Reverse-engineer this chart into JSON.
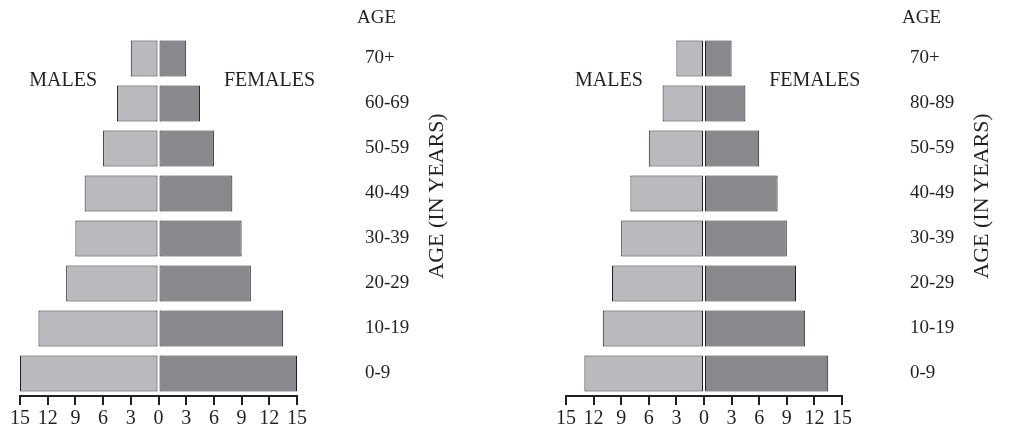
{
  "chart_data": [
    {
      "type": "bar",
      "orientation": "horizontal",
      "stacked": true,
      "ylabel": "AGE (IN YEARS)",
      "annotations": [
        "AGE"
      ],
      "categories": [
        "70+",
        "60-69",
        "50-59",
        "40-49",
        "30-39",
        "20-29",
        "10-19",
        "0-9"
      ],
      "series": [
        {
          "name": "MALES",
          "color": "#b9babd",
          "values": [
            -3,
            -4.5,
            -6,
            -8,
            -9,
            -10,
            -13,
            -15
          ]
        },
        {
          "name": "FEMALES",
          "color": "#88898d",
          "values": [
            3,
            4.5,
            6,
            8,
            9,
            10,
            13.5,
            15
          ]
        }
      ],
      "xlim": [
        -15,
        15
      ],
      "xticks": [
        {
          "value": -15,
          "label": "15"
        },
        {
          "value": -12,
          "label": "12"
        },
        {
          "value": -9,
          "label": "9"
        },
        {
          "value": -6,
          "label": "6"
        },
        {
          "value": -3,
          "label": "3"
        },
        0,
        3,
        6,
        9,
        12,
        15
      ],
      "grid": false,
      "legend": false
    },
    {
      "type": "bar",
      "orientation": "horizontal",
      "stacked": true,
      "ylabel": "AGE (IN YEARS)",
      "annotations": [
        "AGE"
      ],
      "categories": [
        "70+",
        "80-89",
        "50-59",
        "40-49",
        "30-39",
        "20-29",
        "10-19",
        "0-9"
      ],
      "series": [
        {
          "name": "MALES",
          "color": "#b9babd",
          "values": [
            -3,
            -4.5,
            -6,
            -8,
            -9,
            -10,
            -11,
            -13
          ]
        },
        {
          "name": "FEMALES",
          "color": "#88898d",
          "values": [
            3,
            4.5,
            6,
            8,
            9,
            10,
            11,
            13.5
          ]
        }
      ],
      "xlim": [
        -15,
        15
      ],
      "xticks": [
        {
          "value": -15,
          "label": "15"
        },
        {
          "value": -12,
          "label": "12"
        },
        {
          "value": -9,
          "label": "9"
        },
        {
          "value": -6,
          "label": "6"
        },
        {
          "value": -3,
          "label": "3"
        },
        0,
        3,
        6,
        9,
        12,
        15
      ],
      "grid": false,
      "legend": false
    }
  ]
}
